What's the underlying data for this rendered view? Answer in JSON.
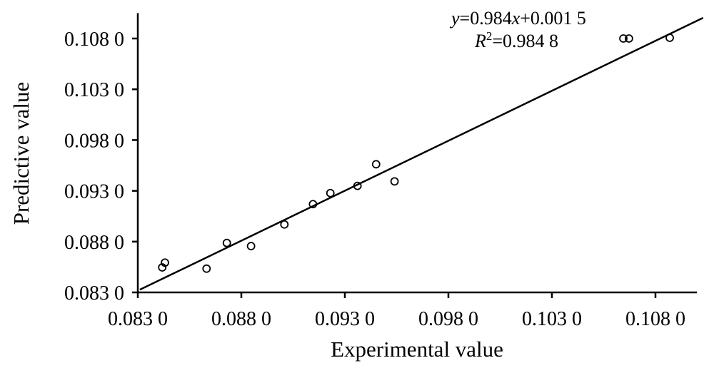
{
  "chart_data": {
    "type": "scatter",
    "title": "",
    "xlabel": "Experimental value",
    "ylabel": "Predictive value",
    "xlim": [
      0.083,
      0.11
    ],
    "ylim": [
      0.083,
      0.1105
    ],
    "xticks": [
      0.083,
      0.088,
      0.093,
      0.098,
      0.103,
      0.108
    ],
    "xtick_labels": [
      "0.083 0",
      "0.088 0",
      "0.093 0",
      "0.098 0",
      "0.103 0",
      "0.108 0"
    ],
    "yticks": [
      0.083,
      0.088,
      0.093,
      0.098,
      0.103,
      0.108
    ],
    "ytick_labels": [
      "0.083 0",
      "0.088 0",
      "0.093 0",
      "0.098 0",
      "0.103 0",
      "0.108 0"
    ],
    "grid": false,
    "points": [
      {
        "x": 0.08418,
        "y": 0.08546
      },
      {
        "x": 0.08431,
        "y": 0.08593
      },
      {
        "x": 0.08632,
        "y": 0.08534
      },
      {
        "x": 0.0873,
        "y": 0.08787
      },
      {
        "x": 0.08847,
        "y": 0.08756
      },
      {
        "x": 0.09008,
        "y": 0.08969
      },
      {
        "x": 0.09146,
        "y": 0.09169
      },
      {
        "x": 0.0923,
        "y": 0.09278
      },
      {
        "x": 0.09361,
        "y": 0.09349
      },
      {
        "x": 0.09451,
        "y": 0.09562
      },
      {
        "x": 0.0954,
        "y": 0.09393
      },
      {
        "x": 0.10645,
        "y": 0.108
      },
      {
        "x": 0.10672,
        "y": 0.108
      },
      {
        "x": 0.10869,
        "y": 0.10807
      }
    ],
    "fit": {
      "slope": 0.984,
      "intercept": 0.0015,
      "x_range": [
        0.0831,
        0.1103
      ]
    },
    "annotations": {
      "equation_y": "y",
      "equation_rest": "=0.984",
      "equation_x": "x",
      "equation_tail": "+0.001 5",
      "r2_R": "R",
      "r2_sup": "2",
      "r2_rest": "=0.984 8"
    }
  }
}
